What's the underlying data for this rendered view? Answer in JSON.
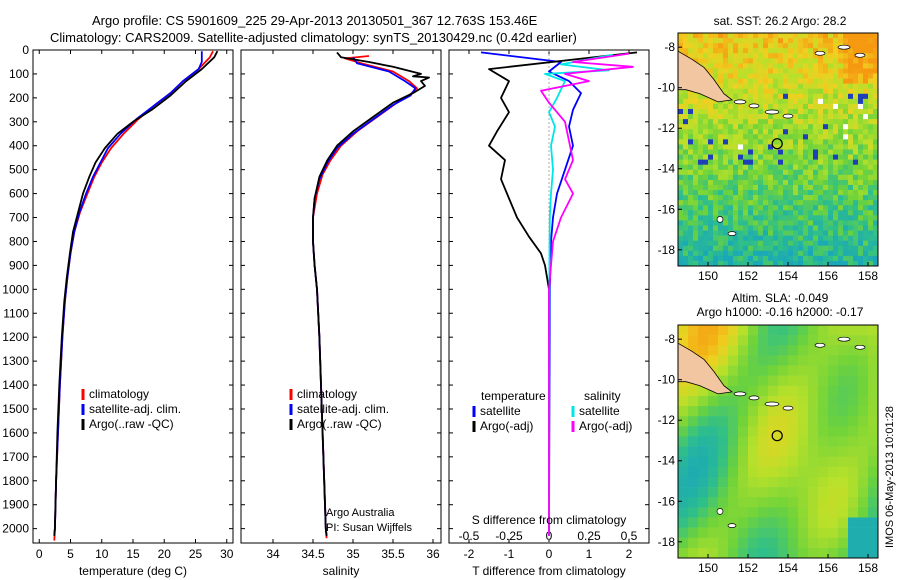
{
  "header": {
    "line1": "Argo profile: CS 5901609_225 29-Apr-2013 20130501_367 12.763S 153.46E",
    "line2": "Climatology: CARS2009. Satellite-adjusted climatology: synTS_20130429.nc (0.42d earlier)"
  },
  "side_note": "IMOS 06-May-2013 10:01:28",
  "colors": {
    "climatology": "#ff0000",
    "satellite": "#0000ff",
    "argo": "#000000",
    "satellite_salinity": "#00e6e6",
    "argo_salinity": "#ff00ff",
    "land": "#f2c6a0"
  },
  "chart_data": [
    {
      "type": "line",
      "id": "temperature",
      "xlabel": "temperature (deg C)",
      "xlim": [
        -1,
        31
      ],
      "ylim": [
        2060,
        0
      ],
      "xticks": [
        0,
        5,
        10,
        15,
        20,
        25,
        30
      ],
      "yticks": [
        0,
        100,
        200,
        300,
        400,
        500,
        600,
        700,
        800,
        900,
        1000,
        1100,
        1200,
        1300,
        1400,
        1500,
        1600,
        1700,
        1800,
        1900,
        2000
      ],
      "legend_position": "lower-center",
      "series": [
        {
          "name": "climatology",
          "color": "#ff0000",
          "points": [
            [
              27.8,
              5
            ],
            [
              27.3,
              30
            ],
            [
              25.5,
              80
            ],
            [
              23,
              130
            ],
            [
              21,
              180
            ],
            [
              18.5,
              230
            ],
            [
              15.8,
              290
            ],
            [
              13.5,
              350
            ],
            [
              11.5,
              410
            ],
            [
              10,
              470
            ],
            [
              8.8,
              530
            ],
            [
              7.7,
              600
            ],
            [
              6.5,
              680
            ],
            [
              5.6,
              760
            ],
            [
              5,
              850
            ],
            [
              4.5,
              950
            ],
            [
              4.1,
              1050
            ],
            [
              3.7,
              1200
            ],
            [
              3.3,
              1400
            ],
            [
              3,
              1600
            ],
            [
              2.7,
              1800
            ],
            [
              2.5,
              2000
            ],
            [
              2.4,
              2050
            ]
          ]
        },
        {
          "name": "satellite-adj. clim.",
          "color": "#0000ff",
          "points": [
            [
              26,
              5
            ],
            [
              26,
              50
            ],
            [
              25.5,
              80
            ],
            [
              23,
              130
            ],
            [
              21,
              180
            ],
            [
              18.5,
              230
            ],
            [
              15.5,
              290
            ],
            [
              13,
              350
            ],
            [
              11,
              410
            ],
            [
              9.8,
              470
            ],
            [
              8.6,
              530
            ],
            [
              7.5,
              600
            ],
            [
              6.4,
              680
            ],
            [
              5.6,
              760
            ],
            [
              5,
              850
            ],
            [
              4.5,
              950
            ],
            [
              4.1,
              1050
            ],
            [
              3.7,
              1200
            ],
            [
              3.3,
              1400
            ],
            [
              3,
              1600
            ],
            [
              2.7,
              1800
            ],
            [
              2.5,
              2000
            ],
            [
              2.4,
              2030
            ]
          ]
        },
        {
          "name": "Argo(..raw -QC)",
          "color": "#000000",
          "points": [
            [
              28.5,
              5
            ],
            [
              28,
              30
            ],
            [
              26,
              80
            ],
            [
              23.5,
              130
            ],
            [
              21,
              190
            ],
            [
              18,
              250
            ],
            [
              15,
              300
            ],
            [
              12.5,
              350
            ],
            [
              10.5,
              410
            ],
            [
              9,
              470
            ],
            [
              8,
              530
            ],
            [
              7,
              600
            ],
            [
              6.2,
              680
            ],
            [
              5.4,
              760
            ],
            [
              4.9,
              850
            ],
            [
              4.4,
              950
            ],
            [
              4,
              1050
            ],
            [
              3.6,
              1200
            ],
            [
              3.2,
              1400
            ],
            [
              2.9,
              1600
            ],
            [
              2.7,
              1800
            ],
            [
              2.5,
              2000
            ],
            [
              2.4,
              2030
            ]
          ]
        }
      ],
      "legend": [
        "climatology",
        "satellite-adj. clim.",
        "Argo(..raw -QC)"
      ]
    },
    {
      "type": "line",
      "id": "salinity",
      "xlabel": "salinity",
      "xlim": [
        33.6,
        36.1
      ],
      "ylim": [
        2060,
        0
      ],
      "xticks": [
        34,
        34.5,
        35,
        35.5,
        36
      ],
      "legend_position": "lower-center",
      "annotation": [
        "Argo Australia",
        "PI: Susan Wijffels"
      ],
      "series": [
        {
          "name": "climatology",
          "color": "#ff0000",
          "points": [
            [
              35.2,
              25
            ],
            [
              34.9,
              35
            ],
            [
              35.1,
              55
            ],
            [
              35.5,
              90
            ],
            [
              35.7,
              130
            ],
            [
              35.8,
              160
            ],
            [
              35.7,
              190
            ],
            [
              35.55,
              220
            ],
            [
              35.3,
              280
            ],
            [
              35.05,
              340
            ],
            [
              34.85,
              400
            ],
            [
              34.72,
              460
            ],
            [
              34.62,
              520
            ],
            [
              34.55,
              600
            ],
            [
              34.5,
              700
            ],
            [
              34.5,
              800
            ],
            [
              34.52,
              900
            ],
            [
              34.55,
              1000
            ],
            [
              34.58,
              1200
            ],
            [
              34.6,
              1400
            ],
            [
              34.62,
              1600
            ],
            [
              34.64,
              1800
            ],
            [
              34.66,
              2000
            ],
            [
              34.67,
              2040
            ]
          ]
        },
        {
          "name": "satellite-adj. clim.",
          "color": "#0000ff",
          "points": [
            [
              35.0,
              30
            ],
            [
              35.05,
              55
            ],
            [
              35.45,
              90
            ],
            [
              35.65,
              130
            ],
            [
              35.78,
              160
            ],
            [
              35.72,
              190
            ],
            [
              35.5,
              230
            ],
            [
              35.25,
              290
            ],
            [
              35.0,
              350
            ],
            [
              34.8,
              410
            ],
            [
              34.68,
              470
            ],
            [
              34.58,
              540
            ],
            [
              34.52,
              620
            ],
            [
              34.5,
              700
            ],
            [
              34.5,
              800
            ],
            [
              34.52,
              900
            ],
            [
              34.55,
              1000
            ],
            [
              34.58,
              1200
            ],
            [
              34.6,
              1400
            ],
            [
              34.62,
              1600
            ],
            [
              34.64,
              1800
            ],
            [
              34.66,
              2000
            ],
            [
              34.67,
              2030
            ]
          ]
        },
        {
          "name": "Argo(..raw -QC)",
          "color": "#000000",
          "points": [
            [
              34.8,
              10
            ],
            [
              34.85,
              30
            ],
            [
              35.2,
              50
            ],
            [
              35.5,
              70
            ],
            [
              35.85,
              100
            ],
            [
              35.75,
              110
            ],
            [
              35.95,
              115
            ],
            [
              35.85,
              130
            ],
            [
              35.9,
              150
            ],
            [
              35.75,
              180
            ],
            [
              35.5,
              220
            ],
            [
              35.25,
              280
            ],
            [
              35.0,
              340
            ],
            [
              34.8,
              400
            ],
            [
              34.68,
              460
            ],
            [
              34.58,
              530
            ],
            [
              34.52,
              620
            ],
            [
              34.5,
              700
            ],
            [
              34.5,
              800
            ],
            [
              34.52,
              900
            ],
            [
              34.55,
              1000
            ],
            [
              34.58,
              1200
            ],
            [
              34.6,
              1400
            ],
            [
              34.62,
              1600
            ],
            [
              34.64,
              1800
            ],
            [
              34.66,
              2000
            ],
            [
              34.67,
              2030
            ]
          ]
        }
      ],
      "legend": [
        "climatology",
        "satellite-adj. clim.",
        "Argo(..raw -QC)"
      ]
    },
    {
      "type": "line",
      "id": "difference",
      "xlabel": "T difference from climatology",
      "xlabel_top": "S difference from climatology",
      "xlim": [
        -2.5,
        2.5
      ],
      "ylim": [
        2060,
        0
      ],
      "xticks": [
        -2,
        -1,
        0,
        1,
        2
      ],
      "xticks_top": [
        -0.5,
        -0.25,
        0,
        0.25,
        0.5
      ],
      "xticks_top_labels": [
        "-0.5",
        "-0.25",
        "0",
        "0.25",
        "0.5"
      ],
      "legend_position": "lower-center",
      "legend_headers": [
        "temperature",
        "salinity"
      ],
      "series": [
        {
          "name": "satellite",
          "group": "temperature",
          "color": "#0000ff",
          "points": [
            [
              -1.7,
              10
            ],
            [
              0.3,
              50
            ],
            [
              0,
              90
            ],
            [
              0.5,
              130
            ],
            [
              0.8,
              180
            ],
            [
              0.6,
              250
            ],
            [
              0.5,
              320
            ],
            [
              0.6,
              400
            ],
            [
              0.4,
              500
            ],
            [
              0.2,
              600
            ],
            [
              0.1,
              700
            ],
            [
              0.05,
              800
            ],
            [
              0.02,
              1000
            ],
            [
              0.01,
              1500
            ],
            [
              0,
              2030
            ]
          ]
        },
        {
          "name": "Argo(-adj)",
          "group": "temperature",
          "color": "#000000",
          "points": [
            [
              2.2,
              10
            ],
            [
              -1.5,
              80
            ],
            [
              -1,
              130
            ],
            [
              -1.2,
              200
            ],
            [
              -1.0,
              260
            ],
            [
              -1.3,
              340
            ],
            [
              -1.5,
              400
            ],
            [
              -1.1,
              460
            ],
            [
              -1.2,
              540
            ],
            [
              -1.0,
              620
            ],
            [
              -0.8,
              700
            ],
            [
              -0.5,
              780
            ],
            [
              -0.2,
              850
            ],
            [
              -0.1,
              900
            ],
            [
              0,
              1000
            ],
            [
              0,
              1500
            ],
            [
              0,
              2030
            ]
          ]
        },
        {
          "name": "satellite",
          "group": "salinity",
          "color": "#00e6e6",
          "points": [
            [
              1.6,
              20
            ],
            [
              0.3,
              60
            ],
            [
              1.5,
              85
            ],
            [
              -0.1,
              100
            ],
            [
              0.4,
              130
            ],
            [
              0.2,
              200
            ],
            [
              0,
              260
            ],
            [
              0.15,
              320
            ],
            [
              0.05,
              400
            ],
            [
              0.1,
              500
            ],
            [
              0.05,
              600
            ],
            [
              0.02,
              700
            ],
            [
              0.01,
              900
            ],
            [
              0,
              1300
            ],
            [
              0,
              2030
            ]
          ]
        },
        {
          "name": "Argo(-adj)",
          "group": "salinity",
          "color": "#ff00ff",
          "points": [
            [
              2.0,
              15
            ],
            [
              0.6,
              50
            ],
            [
              2.1,
              70
            ],
            [
              0.4,
              100
            ],
            [
              1.0,
              130
            ],
            [
              -0.2,
              170
            ],
            [
              0,
              220
            ],
            [
              0.4,
              300
            ],
            [
              0.5,
              380
            ],
            [
              0.6,
              460
            ],
            [
              0.4,
              540
            ],
            [
              0.6,
              600
            ],
            [
              0.3,
              700
            ],
            [
              0.1,
              800
            ],
            [
              0.05,
              900
            ],
            [
              0,
              1000
            ],
            [
              0,
              1500
            ],
            [
              0,
              2030
            ]
          ]
        }
      ]
    },
    {
      "type": "heatmap",
      "id": "sst-map",
      "title": "sat. SST: 26.2 Argo: 28.2",
      "xlim": [
        148.5,
        158.5
      ],
      "ylim": [
        -18.8,
        -7.3
      ],
      "xticks": [
        150,
        152,
        154,
        156,
        158
      ],
      "yticks": [
        -8,
        -10,
        -12,
        -14,
        -16,
        -18
      ],
      "marker": {
        "lon": 153.46,
        "lat": -12.763
      }
    },
    {
      "type": "heatmap",
      "id": "sla-map",
      "title": "Altim. SLA: -0.049",
      "subtitle": "Argo h1000: -0.16 h2000: -0.17",
      "xlim": [
        148.5,
        158.5
      ],
      "ylim": [
        -18.8,
        -7.3
      ],
      "xticks": [
        150,
        152,
        154,
        156,
        158
      ],
      "yticks": [
        -8,
        -10,
        -12,
        -14,
        -16,
        -18
      ],
      "marker": {
        "lon": 153.46,
        "lat": -12.763
      }
    }
  ]
}
